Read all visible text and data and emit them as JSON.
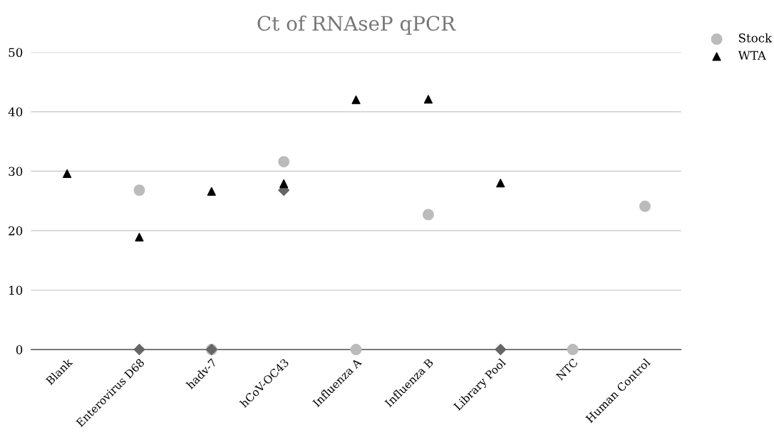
{
  "chart_data": {
    "type": "scatter",
    "title": "Ct of RNAseP qPCR",
    "categories": [
      "Blank",
      "Enterovirus D68",
      "hadv-7",
      "hCoV-OC43",
      "Influenza A",
      "Influenza B",
      "Library Pool",
      "NTC",
      "Human Control"
    ],
    "series": [
      {
        "name": "Stock",
        "color": "#bbbbbb",
        "marker": "circle",
        "values": [
          null,
          26.8,
          0,
          31.6,
          0,
          22.7,
          null,
          0,
          24.1
        ]
      },
      {
        "color": "#666666",
        "marker": "diamond",
        "values": [
          null,
          0,
          0,
          26.8,
          null,
          null,
          0,
          null,
          null
        ]
      },
      {
        "name": "WTA",
        "color": "#000000",
        "marker": "triangle",
        "values": [
          29.6,
          18.9,
          26.6,
          27.9,
          42.0,
          42.1,
          28.0,
          null,
          null
        ]
      }
    ],
    "ylim": [
      0,
      50
    ],
    "yticks": [
      0,
      10,
      20,
      30,
      40,
      50
    ],
    "grid": "y",
    "legend": "top right"
  }
}
